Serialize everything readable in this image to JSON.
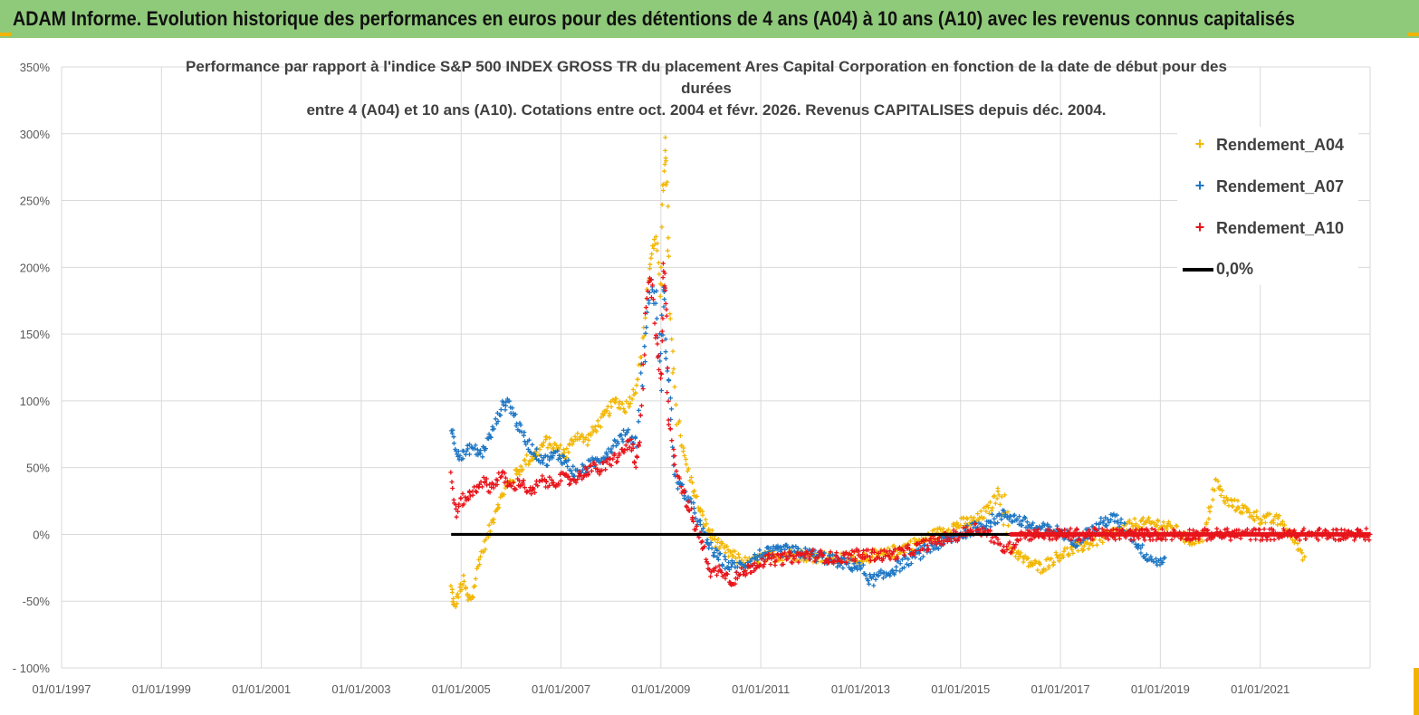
{
  "page_title": "ADAM Informe. Evolution historique des performances en euros pour des détentions de 4 ans (A04) à 10 ans (A10) avec les revenus connus capitalisés",
  "colors": {
    "banner": "#8fc97a",
    "a04": "#f2b705",
    "a07": "#1f77c4",
    "a10": "#e8141b",
    "zero": "#000000",
    "grid": "#d9d9d9"
  },
  "chart_data": {
    "type": "scatter",
    "title": [
      "Performance par rapport à l'indice S&P 500 INDEX GROSS TR  du placement Ares Capital Corporation en fonction de la date de début pour des",
      "durées",
      "entre 4 (A04) et 10 ans (A10). Cotations entre oct. 2004 et févr. 2026. Revenus CAPITALISES depuis déc. 2004."
    ],
    "y_ticks": [
      "350%",
      "300%",
      "250%",
      "200%",
      "150%",
      "100%",
      "50%",
      "0%",
      "-50%",
      "- 100%"
    ],
    "y_tick_values": [
      350,
      300,
      250,
      200,
      150,
      100,
      50,
      0,
      -50,
      -100
    ],
    "ylim": [
      -100,
      350
    ],
    "x_ticks": [
      "01/01/1997",
      "01/01/1999",
      "01/01/2001",
      "01/01/2003",
      "01/01/2005",
      "01/01/2007",
      "01/01/2009",
      "01/01/2011",
      "01/01/2013",
      "01/01/2015",
      "01/01/2017",
      "01/01/2019",
      "01/01/2021"
    ],
    "x_tick_values": [
      1997,
      1999,
      2001,
      2003,
      2005,
      2007,
      2009,
      2011,
      2013,
      2015,
      2017,
      2019,
      2021
    ],
    "xlim": [
      1997,
      2023.2
    ],
    "legend": [
      "Rendement_A04",
      "Rendement_A07",
      "Rendement_A10",
      "0,0%"
    ],
    "series": [
      {
        "name": "Rendement_A04",
        "points": [
          [
            2004.8,
            -40
          ],
          [
            2004.85,
            -55
          ],
          [
            2004.95,
            -45
          ],
          [
            2005.05,
            -35
          ],
          [
            2005.15,
            -50
          ],
          [
            2005.25,
            -45
          ],
          [
            2005.35,
            -20
          ],
          [
            2005.5,
            -5
          ],
          [
            2005.7,
            20
          ],
          [
            2005.9,
            35
          ],
          [
            2006.1,
            45
          ],
          [
            2006.3,
            55
          ],
          [
            2006.5,
            60
          ],
          [
            2006.7,
            70
          ],
          [
            2006.9,
            65
          ],
          [
            2007.1,
            60
          ],
          [
            2007.3,
            75
          ],
          [
            2007.5,
            70
          ],
          [
            2007.7,
            80
          ],
          [
            2007.9,
            90
          ],
          [
            2008.1,
            100
          ],
          [
            2008.3,
            95
          ],
          [
            2008.5,
            110
          ],
          [
            2008.6,
            130
          ],
          [
            2008.7,
            170
          ],
          [
            2008.8,
            210
          ],
          [
            2008.9,
            220
          ],
          [
            2009.0,
            185
          ],
          [
            2009.05,
            260
          ],
          [
            2009.1,
            290
          ],
          [
            2009.15,
            210
          ],
          [
            2009.25,
            120
          ],
          [
            2009.4,
            70
          ],
          [
            2009.6,
            40
          ],
          [
            2009.8,
            15
          ],
          [
            2010.0,
            0
          ],
          [
            2010.2,
            -10
          ],
          [
            2010.4,
            -15
          ],
          [
            2010.6,
            -20
          ],
          [
            2010.8,
            -22
          ],
          [
            2011.0,
            -18
          ],
          [
            2011.5,
            -15
          ],
          [
            2012.0,
            -16
          ],
          [
            2012.5,
            -18
          ],
          [
            2013.0,
            -17
          ],
          [
            2013.5,
            -15
          ],
          [
            2014.0,
            -8
          ],
          [
            2014.5,
            0
          ],
          [
            2015.0,
            8
          ],
          [
            2015.3,
            10
          ],
          [
            2015.6,
            20
          ],
          [
            2015.8,
            35
          ],
          [
            2016.0,
            -10
          ],
          [
            2016.3,
            -20
          ],
          [
            2016.6,
            -25
          ],
          [
            2017.0,
            -15
          ],
          [
            2017.5,
            -8
          ],
          [
            2018.0,
            0
          ],
          [
            2018.5,
            8
          ],
          [
            2019.0,
            8
          ],
          [
            2019.3,
            3
          ],
          [
            2019.6,
            -5
          ],
          [
            2019.9,
            0
          ],
          [
            2020.1,
            40
          ],
          [
            2020.3,
            25
          ],
          [
            2020.6,
            20
          ],
          [
            2021.0,
            12
          ],
          [
            2021.4,
            10
          ],
          [
            2021.7,
            -5
          ],
          [
            2021.9,
            -18
          ]
        ]
      },
      {
        "name": "Rendement_A07",
        "points": [
          [
            2004.8,
            80
          ],
          [
            2004.9,
            65
          ],
          [
            2005.0,
            58
          ],
          [
            2005.2,
            65
          ],
          [
            2005.4,
            60
          ],
          [
            2005.6,
            75
          ],
          [
            2005.8,
            95
          ],
          [
            2005.95,
            100
          ],
          [
            2006.1,
            85
          ],
          [
            2006.3,
            70
          ],
          [
            2006.5,
            60
          ],
          [
            2006.7,
            55
          ],
          [
            2006.9,
            60
          ],
          [
            2007.1,
            55
          ],
          [
            2007.3,
            45
          ],
          [
            2007.5,
            50
          ],
          [
            2007.7,
            55
          ],
          [
            2007.9,
            60
          ],
          [
            2008.1,
            70
          ],
          [
            2008.3,
            75
          ],
          [
            2008.5,
            70
          ],
          [
            2008.7,
            150
          ],
          [
            2008.8,
            190
          ],
          [
            2008.9,
            170
          ],
          [
            2009.0,
            120
          ],
          [
            2009.05,
            185
          ],
          [
            2009.1,
            140
          ],
          [
            2009.2,
            90
          ],
          [
            2009.3,
            40
          ],
          [
            2009.5,
            30
          ],
          [
            2009.7,
            15
          ],
          [
            2009.9,
            -5
          ],
          [
            2010.1,
            -15
          ],
          [
            2010.3,
            -22
          ],
          [
            2010.5,
            -25
          ],
          [
            2010.8,
            -20
          ],
          [
            2011.0,
            -15
          ],
          [
            2011.5,
            -12
          ],
          [
            2012.0,
            -15
          ],
          [
            2012.5,
            -20
          ],
          [
            2013.0,
            -25
          ],
          [
            2013.2,
            -35
          ],
          [
            2013.5,
            -30
          ],
          [
            2014.0,
            -18
          ],
          [
            2014.5,
            -8
          ],
          [
            2015.0,
            0
          ],
          [
            2015.3,
            5
          ],
          [
            2015.6,
            10
          ],
          [
            2015.9,
            15
          ],
          [
            2016.2,
            10
          ],
          [
            2016.5,
            5
          ],
          [
            2017.0,
            2
          ],
          [
            2017.3,
            -5
          ],
          [
            2017.6,
            2
          ],
          [
            2017.9,
            10
          ],
          [
            2018.1,
            12
          ],
          [
            2018.4,
            0
          ],
          [
            2018.7,
            -15
          ],
          [
            2018.9,
            -20
          ],
          [
            2019.1,
            -20
          ]
        ]
      },
      {
        "name": "Rendement_A10",
        "points": [
          [
            2004.8,
            45
          ],
          [
            2004.9,
            15
          ],
          [
            2005.0,
            25
          ],
          [
            2005.2,
            30
          ],
          [
            2005.4,
            40
          ],
          [
            2005.6,
            35
          ],
          [
            2005.8,
            45
          ],
          [
            2006.0,
            35
          ],
          [
            2006.2,
            40
          ],
          [
            2006.4,
            30
          ],
          [
            2006.6,
            40
          ],
          [
            2006.8,
            38
          ],
          [
            2007.0,
            42
          ],
          [
            2007.2,
            40
          ],
          [
            2007.4,
            45
          ],
          [
            2007.6,
            50
          ],
          [
            2007.8,
            48
          ],
          [
            2008.0,
            55
          ],
          [
            2008.2,
            60
          ],
          [
            2008.4,
            70
          ],
          [
            2008.5,
            50
          ],
          [
            2008.6,
            75
          ],
          [
            2008.7,
            170
          ],
          [
            2008.8,
            200
          ],
          [
            2008.9,
            150
          ],
          [
            2009.0,
            110
          ],
          [
            2009.05,
            200
          ],
          [
            2009.1,
            180
          ],
          [
            2009.15,
            90
          ],
          [
            2009.3,
            50
          ],
          [
            2009.5,
            25
          ],
          [
            2009.7,
            5
          ],
          [
            2009.9,
            -15
          ],
          [
            2010.0,
            -30
          ],
          [
            2010.2,
            -25
          ],
          [
            2010.4,
            -35
          ],
          [
            2010.6,
            -30
          ],
          [
            2010.8,
            -25
          ],
          [
            2011.0,
            -20
          ],
          [
            2011.5,
            -18
          ],
          [
            2012.0,
            -15
          ],
          [
            2012.5,
            -18
          ],
          [
            2013.0,
            -15
          ],
          [
            2013.5,
            -16
          ],
          [
            2014.0,
            -12
          ],
          [
            2014.5,
            -5
          ],
          [
            2015.0,
            0
          ],
          [
            2015.3,
            5
          ],
          [
            2015.6,
            0
          ],
          [
            2015.8,
            -10
          ],
          [
            2016.0,
            -10
          ],
          [
            2016.2,
            0
          ],
          [
            2016.6,
            0
          ],
          [
            2017.0,
            0
          ],
          [
            2018.0,
            0
          ],
          [
            2019.0,
            0
          ],
          [
            2020.0,
            0
          ],
          [
            2021.0,
            0
          ],
          [
            2022.0,
            0
          ],
          [
            2023.0,
            0
          ],
          [
            2023.2,
            0
          ]
        ]
      },
      {
        "name": "0,0%",
        "points": [
          [
            2004.8,
            0
          ],
          [
            2023.2,
            0
          ]
        ]
      }
    ]
  }
}
